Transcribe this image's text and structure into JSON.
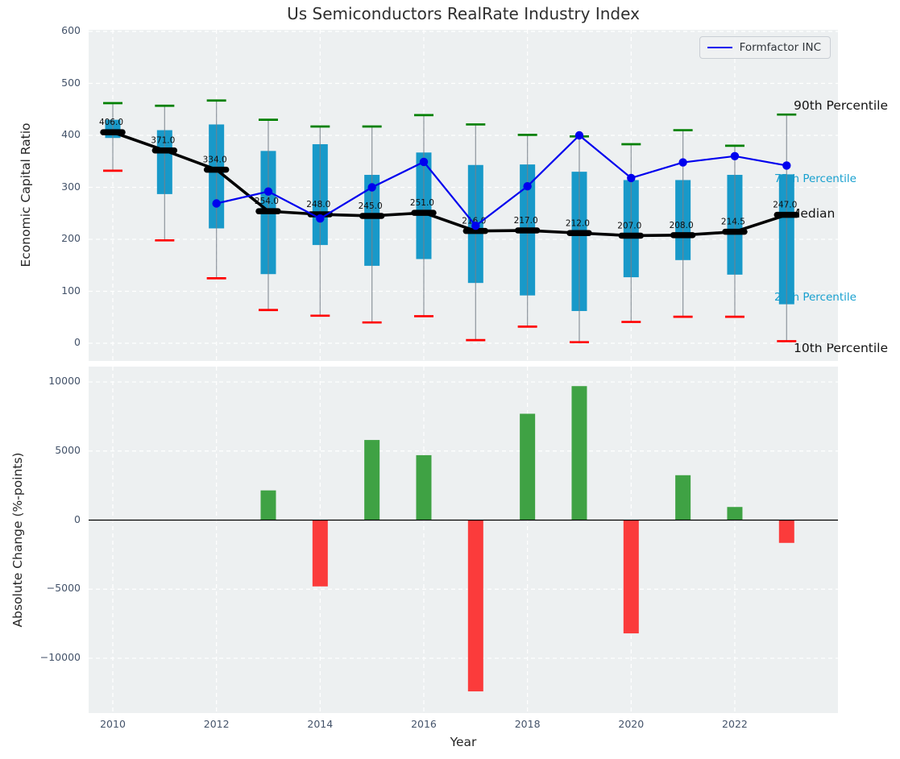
{
  "title": "Us Semiconductors RealRate Industry Index",
  "legend": {
    "formfactor_label": "Formfactor INC"
  },
  "annotations": {
    "p90": "90th Percentile",
    "p75": "75th Percentile",
    "median": "Median",
    "p25": "25th Percentile",
    "p10": "10th Percentile"
  },
  "colors": {
    "plot_bg": "#edf0f1",
    "grid": "#ffffff",
    "box_fill": "#1899c9",
    "whisker": "#77808a",
    "cap_high": "#008000",
    "cap_low": "#ff0000",
    "median_line": "#000000",
    "formfactor_line": "#0000ee",
    "bar_positive": "#3fa244",
    "bar_negative": "#fb3b3b",
    "tick_text": "#44536a",
    "annotation_cyan": "#18a0cf"
  },
  "chart_data": [
    {
      "type": "boxplot+line",
      "title": "Us Semiconductors RealRate Industry Index",
      "ylabel": "Economic Capital Ratio",
      "ylim": [
        0,
        600
      ],
      "grid": true,
      "legend_position": "upper right",
      "ytick_values": [
        0,
        100,
        200,
        300,
        400,
        500,
        600
      ],
      "ytick_labels": [
        "0",
        "100",
        "200",
        "300",
        "400",
        "500",
        "600"
      ],
      "years": [
        2010,
        2011,
        2012,
        2013,
        2014,
        2015,
        2016,
        2017,
        2018,
        2019,
        2020,
        2021,
        2022,
        2023
      ],
      "median": [
        406,
        371,
        334,
        254,
        248,
        245,
        251,
        216,
        217,
        212,
        207,
        208,
        214.5,
        247
      ],
      "median_labels": [
        "406.0",
        "371.0",
        "334.0",
        "254.0",
        "248.0",
        "245.0",
        "251.0",
        "216.0",
        "217.0",
        "212.0",
        "207.0",
        "208.0",
        "214.5",
        "247.0"
      ],
      "p90": [
        462,
        457,
        467,
        430,
        417,
        417,
        439,
        421,
        401,
        398,
        383,
        410,
        380,
        440
      ],
      "p75": [
        430,
        410,
        421,
        370,
        383,
        324,
        367,
        343,
        344,
        330,
        314,
        314,
        324,
        325
      ],
      "p25": [
        395,
        287,
        221,
        133,
        189,
        149,
        162,
        116,
        92,
        62,
        127,
        160,
        132,
        75
      ],
      "p10": [
        332,
        198,
        125,
        64,
        53,
        40,
        52,
        6,
        32,
        2,
        41,
        51,
        51,
        4
      ],
      "series": [
        {
          "name": "Formfactor INC",
          "years": [
            2012,
            2013,
            2014,
            2015,
            2016,
            2017,
            2018,
            2019,
            2020,
            2021,
            2022,
            2023
          ],
          "values": [
            269,
            292,
            240,
            300,
            349,
            226,
            302,
            400,
            318,
            348,
            360,
            342
          ]
        }
      ]
    },
    {
      "type": "bar",
      "ylabel": "Absolute Change (%-points)",
      "xlabel": "Year",
      "ylim": [
        -13970,
        11110
      ],
      "grid": true,
      "ytick_values": [
        10000,
        5000,
        0,
        -5000,
        -10000
      ],
      "ytick_labels": [
        "10000",
        "5000",
        "0",
        "−5000",
        "−10000"
      ],
      "xtick_values": [
        2010,
        2012,
        2014,
        2016,
        2018,
        2020,
        2022
      ],
      "xtick_labels": [
        "2010",
        "2012",
        "2014",
        "2016",
        "2018",
        "2020",
        "2022"
      ],
      "years": [
        2010,
        2011,
        2012,
        2013,
        2014,
        2015,
        2016,
        2017,
        2018,
        2019,
        2020,
        2021,
        2022,
        2023
      ],
      "values": [
        null,
        null,
        null,
        2150,
        -4800,
        5800,
        4700,
        -12400,
        7700,
        9700,
        -8200,
        3250,
        950,
        -1650
      ]
    }
  ]
}
